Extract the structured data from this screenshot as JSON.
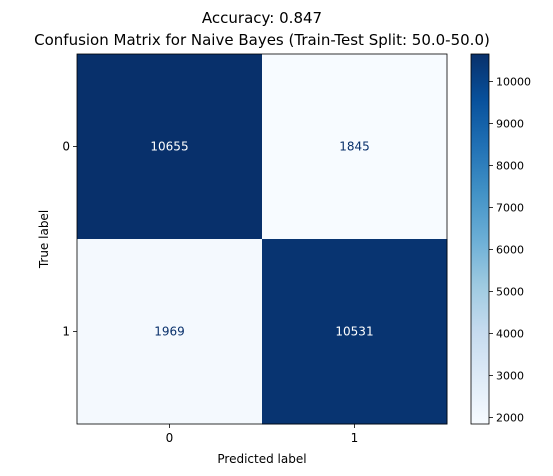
{
  "chart_data": {
    "type": "heatmap",
    "title_line1": "Accuracy: 0.847",
    "title_line2": "Confusion Matrix for Naive Bayes (Train-Test Split: 50.0-50.0)",
    "xlabel": "Predicted label",
    "ylabel": "True label",
    "x_categories": [
      "0",
      "1"
    ],
    "y_categories": [
      "0",
      "1"
    ],
    "matrix": [
      [
        10655,
        1845
      ],
      [
        1969,
        10531
      ]
    ],
    "matrix_labels": [
      [
        "10655",
        "1845"
      ],
      [
        "1969",
        "10531"
      ]
    ],
    "colormap": "Blues",
    "color_range": [
      1845,
      10655
    ],
    "colorbar_ticks": [
      2000,
      3000,
      4000,
      5000,
      6000,
      7000,
      8000,
      9000,
      10000
    ],
    "colorbar_tick_labels": [
      "2000",
      "3000",
      "4000",
      "5000",
      "6000",
      "7000",
      "8000",
      "9000",
      "10000"
    ],
    "text_color_dark_cell": "#ffffff",
    "text_color_light_cell": "#08306b"
  }
}
